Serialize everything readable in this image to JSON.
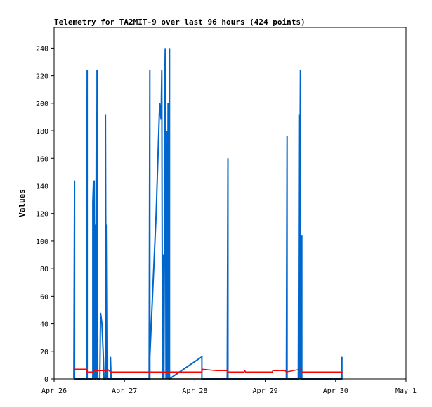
{
  "chart_data": {
    "type": "line",
    "title": "Telemetry for TA2MIT-9 over last 96 hours (424 points)",
    "xlabel": "",
    "ylabel": "Values",
    "x_ticks": [
      "Apr 26",
      "Apr 27",
      "Apr 28",
      "Apr 29",
      "Apr 30",
      "May 1"
    ],
    "y_ticks": [
      0,
      20,
      40,
      60,
      80,
      100,
      120,
      140,
      160,
      180,
      200,
      220,
      240
    ],
    "xlim": [
      0,
      5
    ],
    "ylim": [
      0,
      255
    ],
    "grid": false,
    "legend": "none",
    "series": [
      {
        "color": "#0066cc",
        "points": [
          [
            0.28,
            0
          ],
          [
            0.29,
            144
          ],
          [
            0.29,
            0
          ],
          [
            0.46,
            0
          ],
          [
            0.47,
            224
          ],
          [
            0.47,
            0
          ],
          [
            0.55,
            0
          ],
          [
            0.55,
            128
          ],
          [
            0.56,
            144
          ],
          [
            0.56,
            0
          ],
          [
            0.57,
            144
          ],
          [
            0.57,
            0
          ],
          [
            0.58,
            112
          ],
          [
            0.58,
            0
          ],
          [
            0.59,
            0
          ],
          [
            0.6,
            192
          ],
          [
            0.6,
            0
          ],
          [
            0.61,
            208
          ],
          [
            0.61,
            224
          ],
          [
            0.62,
            0
          ],
          [
            0.65,
            0
          ],
          [
            0.66,
            48
          ],
          [
            0.68,
            40
          ],
          [
            0.7,
            16
          ],
          [
            0.71,
            0
          ],
          [
            0.73,
            0
          ],
          [
            0.73,
            192
          ],
          [
            0.74,
            0
          ],
          [
            0.75,
            112
          ],
          [
            0.76,
            0
          ],
          [
            0.8,
            0
          ],
          [
            0.8,
            16
          ],
          [
            0.81,
            0
          ],
          [
            1.35,
            0
          ],
          [
            1.36,
            224
          ],
          [
            1.36,
            0
          ],
          [
            1.36,
            16
          ],
          [
            1.45,
            120
          ],
          [
            1.5,
            200
          ],
          [
            1.52,
            188
          ],
          [
            1.53,
            224
          ],
          [
            1.54,
            0
          ],
          [
            1.55,
            90
          ],
          [
            1.56,
            0
          ],
          [
            1.57,
            128
          ],
          [
            1.57,
            208
          ],
          [
            1.58,
            240
          ],
          [
            1.59,
            0
          ],
          [
            1.6,
            180
          ],
          [
            1.61,
            0
          ],
          [
            1.62,
            200
          ],
          [
            1.63,
            0
          ],
          [
            1.64,
            240
          ],
          [
            1.64,
            0
          ],
          [
            1.64,
            0
          ],
          [
            2.1,
            16
          ],
          [
            2.1,
            0
          ],
          [
            2.46,
            0
          ],
          [
            2.47,
            160
          ],
          [
            2.47,
            0
          ],
          [
            3.3,
            0
          ],
          [
            3.31,
            176
          ],
          [
            3.31,
            0
          ],
          [
            3.47,
            0
          ],
          [
            3.48,
            192
          ],
          [
            3.48,
            0
          ],
          [
            3.5,
            224
          ],
          [
            3.5,
            0
          ],
          [
            3.52,
            104
          ],
          [
            3.52,
            0
          ],
          [
            4.08,
            0
          ],
          [
            4.09,
            16
          ],
          [
            4.09,
            0
          ]
        ]
      },
      {
        "color": "#ff0000",
        "points": [
          [
            0.28,
            7
          ],
          [
            0.46,
            7
          ],
          [
            0.47,
            5
          ],
          [
            0.55,
            5
          ],
          [
            0.56,
            6
          ],
          [
            0.74,
            6
          ],
          [
            0.76,
            7
          ],
          [
            0.8,
            5
          ],
          [
            1.2,
            5
          ],
          [
            1.6,
            5
          ],
          [
            2.1,
            5
          ],
          [
            2.11,
            7
          ],
          [
            2.3,
            6
          ],
          [
            2.46,
            6
          ],
          [
            2.47,
            5
          ],
          [
            2.6,
            5
          ],
          [
            2.7,
            5
          ],
          [
            2.71,
            6
          ],
          [
            2.72,
            5
          ],
          [
            3.0,
            5
          ],
          [
            3.1,
            5
          ],
          [
            3.11,
            6
          ],
          [
            3.28,
            6
          ],
          [
            3.3,
            5
          ],
          [
            3.4,
            6
          ],
          [
            3.5,
            7
          ],
          [
            3.52,
            5
          ],
          [
            3.8,
            5
          ],
          [
            4.1,
            5
          ]
        ]
      },
      {
        "color": "#000000",
        "points": [
          [
            0.28,
            0
          ],
          [
            4.1,
            0
          ]
        ]
      }
    ]
  }
}
